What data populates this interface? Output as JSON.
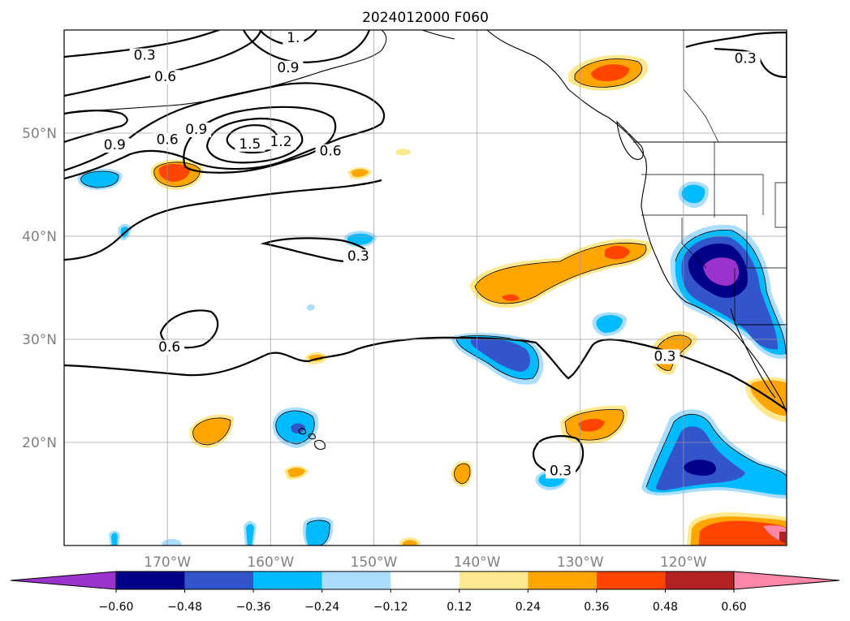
{
  "title": "2024012000 F060",
  "map": {
    "lon_range": [
      -180,
      -110
    ],
    "lat_range": [
      10,
      60
    ],
    "lon_ticks": [
      {
        "value": -170,
        "label": "170°W"
      },
      {
        "value": -160,
        "label": "160°W"
      },
      {
        "value": -150,
        "label": "150°W"
      },
      {
        "value": -140,
        "label": "140°W"
      },
      {
        "value": -130,
        "label": "130°W"
      },
      {
        "value": -120,
        "label": "120°W"
      }
    ],
    "lat_ticks": [
      {
        "value": 50,
        "label": "50°N"
      },
      {
        "value": 40,
        "label": "40°N"
      },
      {
        "value": 30,
        "label": "30°N"
      },
      {
        "value": 20,
        "label": "20°N"
      }
    ],
    "grid": true,
    "contour_labels": [
      {
        "text": "0.3",
        "lon": -172.2,
        "lat": 57.2
      },
      {
        "text": "0.6",
        "lon": -170.2,
        "lat": 55.1
      },
      {
        "text": "1.",
        "lon": -157.8,
        "lat": 58.9
      },
      {
        "text": "0.9",
        "lon": -158.3,
        "lat": 56.0
      },
      {
        "text": "0.9",
        "lon": -175.1,
        "lat": 48.5
      },
      {
        "text": "0.6",
        "lon": -170.0,
        "lat": 49.0
      },
      {
        "text": "0.9",
        "lon": -167.2,
        "lat": 50.0
      },
      {
        "text": "1.5",
        "lon": -162.0,
        "lat": 48.6
      },
      {
        "text": "1.2",
        "lon": -159.0,
        "lat": 48.8
      },
      {
        "text": "0.6",
        "lon": -154.2,
        "lat": 47.9
      },
      {
        "text": "0.3",
        "lon": -151.5,
        "lat": 37.7
      },
      {
        "text": "0.6",
        "lon": -169.8,
        "lat": 28.9
      },
      {
        "text": "0.3",
        "lon": -121.8,
        "lat": 28.0
      },
      {
        "text": "0.3",
        "lon": -114.0,
        "lat": 56.9
      },
      {
        "text": "0.3",
        "lon": -131.9,
        "lat": 16.9
      }
    ]
  },
  "colorbar": {
    "tick_labels": [
      "−0.60",
      "−0.48",
      "−0.36",
      "−0.24",
      "−0.12",
      "0.12",
      "0.24",
      "0.36",
      "0.48",
      "0.60"
    ],
    "colors": [
      "#9933cc",
      "#000088",
      "#3355cc",
      "#00bbff",
      "#aaddff",
      "#ffffff",
      "#ffe990",
      "#ffa500",
      "#ff4500",
      "#b22222",
      "#ff88aa"
    ],
    "extend": "both"
  }
}
